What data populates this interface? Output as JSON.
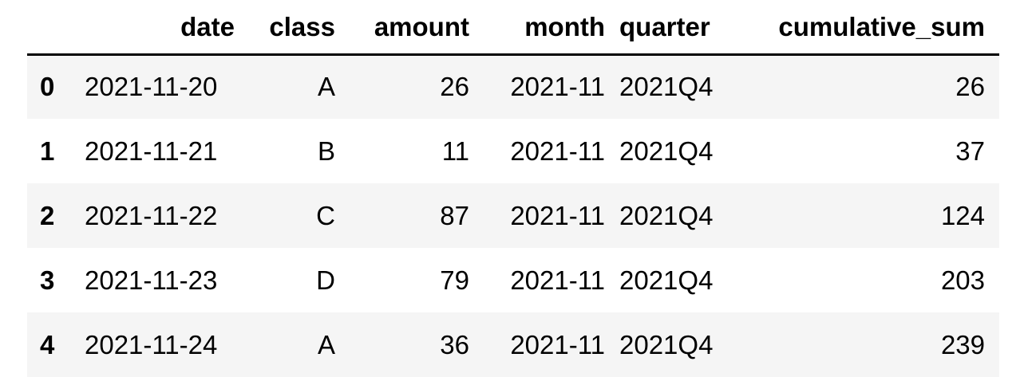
{
  "dataframe": {
    "columns": [
      "",
      "date",
      "class",
      "amount",
      "month",
      "quarter",
      "cumulative_sum"
    ],
    "rows": [
      {
        "index": "0",
        "date": "2021-11-20",
        "class": "A",
        "amount": "26",
        "month": "2021-11",
        "quarter": "2021Q4",
        "cumulative_sum": "26"
      },
      {
        "index": "1",
        "date": "2021-11-21",
        "class": "B",
        "amount": "11",
        "month": "2021-11",
        "quarter": "2021Q4",
        "cumulative_sum": "37"
      },
      {
        "index": "2",
        "date": "2021-11-22",
        "class": "C",
        "amount": "87",
        "month": "2021-11",
        "quarter": "2021Q4",
        "cumulative_sum": "124"
      },
      {
        "index": "3",
        "date": "2021-11-23",
        "class": "D",
        "amount": "79",
        "month": "2021-11",
        "quarter": "2021Q4",
        "cumulative_sum": "203"
      },
      {
        "index": "4",
        "date": "2021-11-24",
        "class": "A",
        "amount": "36",
        "month": "2021-11",
        "quarter": "2021Q4",
        "cumulative_sum": "239"
      }
    ]
  }
}
